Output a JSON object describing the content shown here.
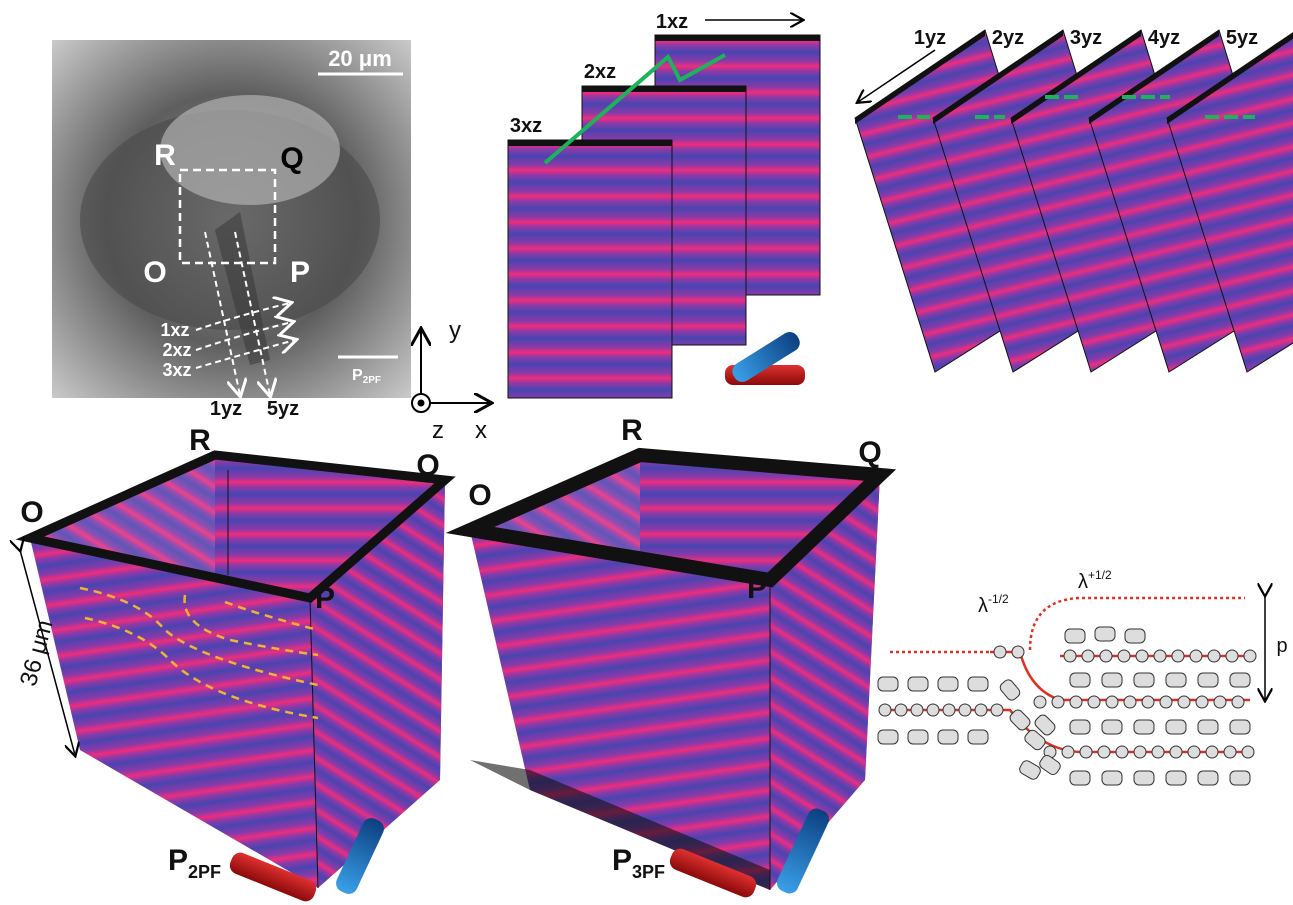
{
  "micrograph": {
    "scale_bar": "20 μm",
    "corners": [
      "R",
      "Q",
      "O",
      "P"
    ],
    "xz_paths": [
      "1xz",
      "2xz",
      "3xz"
    ],
    "yz_paths": [
      "1yz",
      "5yz"
    ],
    "polarizer": {
      "symbol": "P",
      "subscript": "2PF"
    }
  },
  "axes": {
    "y": "y",
    "z": "z",
    "x": "x"
  },
  "xz_slices": [
    "1xz",
    "2xz",
    "3xz"
  ],
  "yz_slices": [
    "1yz",
    "2yz",
    "3yz",
    "4yz",
    "5yz"
  ],
  "cube_2pf": {
    "corners": [
      "R",
      "Q",
      "O",
      "P"
    ],
    "depth": "36 μm",
    "polarizer": {
      "symbol": "P",
      "subscript": "2PF"
    }
  },
  "cube_3pf": {
    "corners": [
      "R",
      "Q",
      "O",
      "P"
    ],
    "polarizer": {
      "symbol": "P",
      "subscript": "3PF"
    }
  },
  "schematic": {
    "lambda_minus": {
      "symbol": "λ",
      "superscript": "-1/2"
    },
    "lambda_plus": {
      "symbol": "λ",
      "superscript": "+1/2"
    },
    "pitch": "p"
  }
}
